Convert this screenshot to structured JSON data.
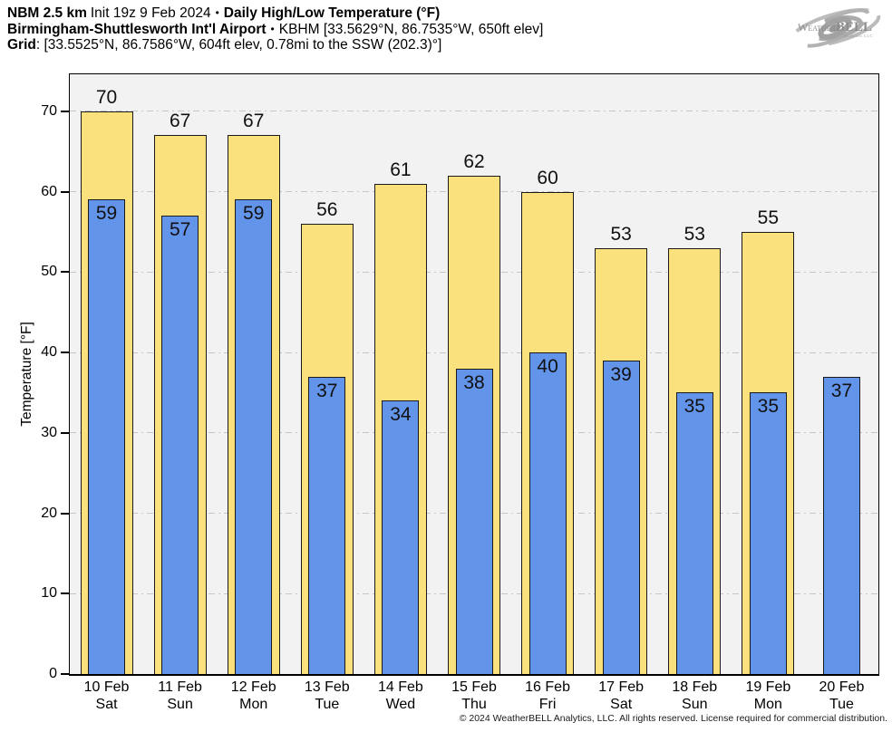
{
  "header": {
    "line1": {
      "model": "NBM 2.5 km",
      "init": "Init 19z 9 Feb 2024",
      "sep": "•",
      "title": "Daily High/Low Temperature (°F)"
    },
    "line2": {
      "station": "Birmingham-Shuttlesworth Int'l Airport",
      "sep": "•",
      "details": "KBHM [33.5629°N, 86.7535°W, 650ft elev]"
    },
    "line3": {
      "label": "Grid",
      "details": ": [33.5525°N, 86.7586°W, 604ft elev, 0.78mi to the SSW (202.3)°]"
    }
  },
  "logo": {
    "word_light": "Weather",
    "word_bold": "BELL",
    "subtext": "Analytics LLC"
  },
  "chart_data": {
    "type": "bar",
    "title": "Daily High/Low Temperature (°F)",
    "ylabel": "Temperature [°F]",
    "ylim": [
      0,
      74.6
    ],
    "yticks": [
      0,
      10,
      20,
      30,
      40,
      50,
      60,
      70
    ],
    "grid": "horizontal-dashdot",
    "plot_bg": "#f2f2f2",
    "legend": "none",
    "categories": [
      {
        "date": "10 Feb",
        "day": "Sat"
      },
      {
        "date": "11 Feb",
        "day": "Sun"
      },
      {
        "date": "12 Feb",
        "day": "Mon"
      },
      {
        "date": "13 Feb",
        "day": "Tue"
      },
      {
        "date": "14 Feb",
        "day": "Wed"
      },
      {
        "date": "15 Feb",
        "day": "Thu"
      },
      {
        "date": "16 Feb",
        "day": "Fri"
      },
      {
        "date": "17 Feb",
        "day": "Sat"
      },
      {
        "date": "18 Feb",
        "day": "Sun"
      },
      {
        "date": "19 Feb",
        "day": "Mon"
      },
      {
        "date": "20 Feb",
        "day": "Tue"
      }
    ],
    "series": [
      {
        "name": "Daily High",
        "color": "#fbe17e",
        "border": "#1a1a1a",
        "values": [
          70,
          67,
          67,
          56,
          61,
          62,
          60,
          53,
          53,
          55,
          null
        ]
      },
      {
        "name": "Daily Low",
        "color": "#6294ea",
        "border": "#1a1a1a",
        "values": [
          59,
          57,
          59,
          37,
          34,
          38,
          40,
          39,
          35,
          35,
          37
        ]
      }
    ]
  },
  "footer": {
    "copyright": "© 2024 WeatherBELL Analytics, LLC. All rights reserved. License required for commercial distribution."
  }
}
